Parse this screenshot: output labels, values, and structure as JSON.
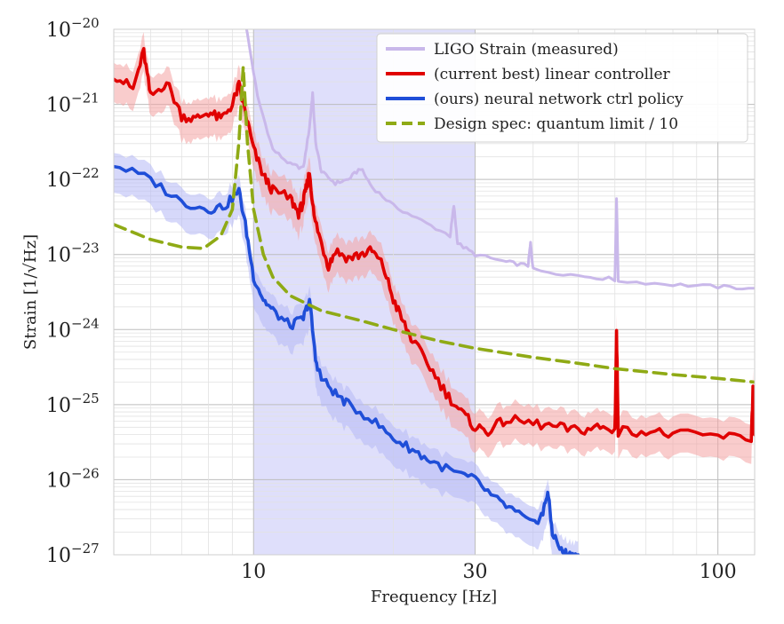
{
  "chart_data": {
    "type": "line",
    "xscale": "log",
    "yscale": "log",
    "xlim": [
      5,
      120
    ],
    "ylim": [
      1e-27,
      1e-20
    ],
    "xlabel": "Frequency [Hz]",
    "ylabel_prefix": "Strain",
    "ylabel_unit": "[1/√Hz]",
    "x_ticks": [
      {
        "value": 10,
        "label": "10"
      },
      {
        "value": 30,
        "label": "30"
      },
      {
        "value": 100,
        "label": "100"
      }
    ],
    "y_ticks": [
      {
        "exp": -20,
        "base": "10",
        "sup": "−20"
      },
      {
        "exp": -21,
        "base": "10",
        "sup": "−21"
      },
      {
        "exp": -22,
        "base": "10",
        "sup": "−22"
      },
      {
        "exp": -23,
        "base": "10",
        "sup": "−23"
      },
      {
        "exp": -24,
        "base": "10",
        "sup": "−24"
      },
      {
        "exp": -25,
        "base": "10",
        "sup": "−25"
      },
      {
        "exp": -26,
        "base": "10",
        "sup": "−26"
      },
      {
        "exp": -27,
        "base": "10",
        "sup": "−27"
      }
    ],
    "shaded_band": {
      "x_from": 10,
      "x_to": 30,
      "color": "#8c8cf0"
    },
    "grid": true,
    "legend_position": "top-right",
    "series": [
      {
        "name": "LIGO Strain (measured)",
        "color": "#c9b8ea",
        "style": "solid",
        "points": [
          [
            9.6,
            -19.9
          ],
          [
            10.2,
            -20.9
          ],
          [
            11,
            -21.6
          ],
          [
            12,
            -21.8
          ],
          [
            12.8,
            -21.85
          ],
          [
            13.2,
            -21.3
          ],
          [
            13.4,
            -20.85
          ],
          [
            13.6,
            -21.5
          ],
          [
            14,
            -21.9
          ],
          [
            15,
            -22.05
          ],
          [
            16,
            -22.0
          ],
          [
            17,
            -21.85
          ],
          [
            18,
            -22.1
          ],
          [
            20,
            -22.35
          ],
          [
            23,
            -22.55
          ],
          [
            26.5,
            -22.75
          ],
          [
            27,
            -22.35
          ],
          [
            27.5,
            -22.85
          ],
          [
            30,
            -23.0
          ],
          [
            35,
            -23.1
          ],
          [
            39,
            -23.15
          ],
          [
            39.5,
            -22.85
          ],
          [
            40,
            -23.2
          ],
          [
            50,
            -23.28
          ],
          [
            60,
            -23.33
          ],
          [
            60.5,
            -22.25
          ],
          [
            61,
            -23.35
          ],
          [
            80,
            -23.4
          ],
          [
            100,
            -23.43
          ],
          [
            120,
            -23.45
          ]
        ]
      },
      {
        "name": "(current best) linear controller",
        "color": "#e00000",
        "style": "solid",
        "points": [
          [
            5,
            -20.6
          ],
          [
            5.5,
            -20.8
          ],
          [
            5.8,
            -20.3
          ],
          [
            6,
            -20.9
          ],
          [
            6.5,
            -20.7
          ],
          [
            7,
            -21.15
          ],
          [
            7.5,
            -21.2
          ],
          [
            8,
            -21.1
          ],
          [
            8.5,
            -21.2
          ],
          [
            9,
            -21.0
          ],
          [
            9.3,
            -20.75
          ],
          [
            9.6,
            -21.1
          ],
          [
            10,
            -21.6
          ],
          [
            10.5,
            -21.95
          ],
          [
            11,
            -22.15
          ],
          [
            12,
            -22.25
          ],
          [
            12.5,
            -22.45
          ],
          [
            12.8,
            -22.3
          ],
          [
            13,
            -22.1
          ],
          [
            13.2,
            -21.9
          ],
          [
            13.5,
            -22.5
          ],
          [
            14,
            -22.85
          ],
          [
            14.5,
            -23.15
          ],
          [
            15,
            -22.95
          ],
          [
            16,
            -23.05
          ],
          [
            17,
            -23.0
          ],
          [
            18,
            -22.95
          ],
          [
            19,
            -23.15
          ],
          [
            20,
            -23.6
          ],
          [
            21,
            -23.9
          ],
          [
            22,
            -24.15
          ],
          [
            24,
            -24.5
          ],
          [
            26,
            -24.85
          ],
          [
            28,
            -25.1
          ],
          [
            30,
            -25.3
          ],
          [
            32,
            -25.35
          ],
          [
            35,
            -25.2
          ],
          [
            40,
            -25.25
          ],
          [
            45,
            -25.3
          ],
          [
            50,
            -25.35
          ],
          [
            55,
            -25.3
          ],
          [
            60,
            -25.35
          ],
          [
            60.5,
            -24.05
          ],
          [
            61,
            -25.35
          ],
          [
            70,
            -25.35
          ],
          [
            80,
            -25.4
          ],
          [
            100,
            -25.42
          ],
          [
            118,
            -25.45
          ],
          [
            119,
            -24.8
          ],
          [
            120,
            -25.4
          ]
        ]
      },
      {
        "name": "(ours) neural network ctrl policy",
        "color": "#1f4ed8",
        "style": "solid",
        "points": [
          [
            5,
            -21.8
          ],
          [
            6,
            -22.0
          ],
          [
            7,
            -22.3
          ],
          [
            8,
            -22.4
          ],
          [
            8.7,
            -22.35
          ],
          [
            9.3,
            -22.15
          ],
          [
            9.6,
            -22.6
          ],
          [
            10,
            -23.3
          ],
          [
            10.5,
            -23.6
          ],
          [
            11,
            -23.75
          ],
          [
            12,
            -23.95
          ],
          [
            12.8,
            -23.85
          ],
          [
            13.2,
            -23.6
          ],
          [
            13.6,
            -24.4
          ],
          [
            14,
            -24.65
          ],
          [
            15,
            -24.85
          ],
          [
            16,
            -25.0
          ],
          [
            18,
            -25.2
          ],
          [
            20,
            -25.45
          ],
          [
            22,
            -25.6
          ],
          [
            24,
            -25.75
          ],
          [
            27,
            -25.9
          ],
          [
            30,
            -26.0
          ],
          [
            33,
            -26.25
          ],
          [
            36,
            -26.4
          ],
          [
            40,
            -26.6
          ],
          [
            42,
            -26.45
          ],
          [
            43,
            -26.15
          ],
          [
            44,
            -26.7
          ],
          [
            46,
            -26.95
          ],
          [
            48,
            -27.0
          ],
          [
            50,
            -27.0
          ]
        ]
      },
      {
        "name": "Design spec: quantum limit / 10",
        "color": "#8faa15",
        "style": "dashed",
        "points": [
          [
            5,
            -22.6
          ],
          [
            6,
            -22.8
          ],
          [
            7,
            -22.9
          ],
          [
            7.8,
            -22.92
          ],
          [
            8.5,
            -22.75
          ],
          [
            9,
            -22.4
          ],
          [
            9.3,
            -21.5
          ],
          [
            9.5,
            -20.5
          ],
          [
            9.7,
            -21.5
          ],
          [
            10,
            -22.4
          ],
          [
            10.5,
            -23.0
          ],
          [
            11,
            -23.3
          ],
          [
            12,
            -23.55
          ],
          [
            14,
            -23.75
          ],
          [
            17,
            -23.88
          ],
          [
            20,
            -24.0
          ],
          [
            25,
            -24.15
          ],
          [
            30,
            -24.25
          ],
          [
            40,
            -24.37
          ],
          [
            50,
            -24.45
          ],
          [
            60,
            -24.52
          ],
          [
            80,
            -24.6
          ],
          [
            100,
            -24.65
          ],
          [
            120,
            -24.7
          ]
        ]
      }
    ]
  }
}
